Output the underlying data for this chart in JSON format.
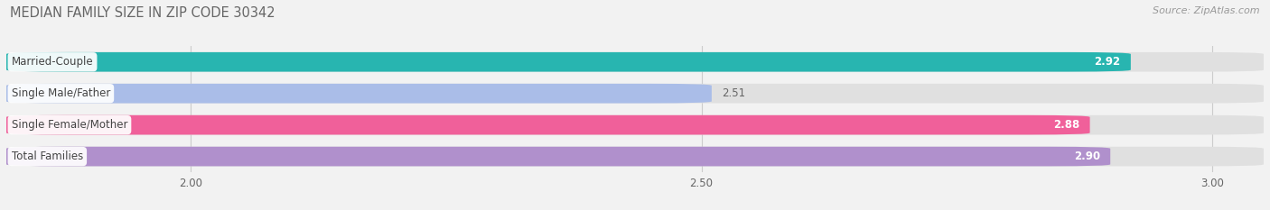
{
  "title": "MEDIAN FAMILY SIZE IN ZIP CODE 30342",
  "source": "Source: ZipAtlas.com",
  "categories": [
    "Married-Couple",
    "Single Male/Father",
    "Single Female/Mother",
    "Total Families"
  ],
  "values": [
    2.92,
    2.51,
    2.88,
    2.9
  ],
  "colors": [
    "#28b5b0",
    "#aabde8",
    "#f0609a",
    "#b090cc"
  ],
  "xlim": [
    1.82,
    3.05
  ],
  "xticks": [
    2.0,
    2.5,
    3.0
  ],
  "bar_height": 0.62,
  "bar_gap": 0.38,
  "background_color": "#f2f2f2",
  "bar_bg_color": "#e0e0e0",
  "title_fontsize": 10.5,
  "label_fontsize": 8.5,
  "value_fontsize": 8.5,
  "source_fontsize": 8,
  "value_label_dark": "#666666",
  "value_label_light": "#ffffff"
}
